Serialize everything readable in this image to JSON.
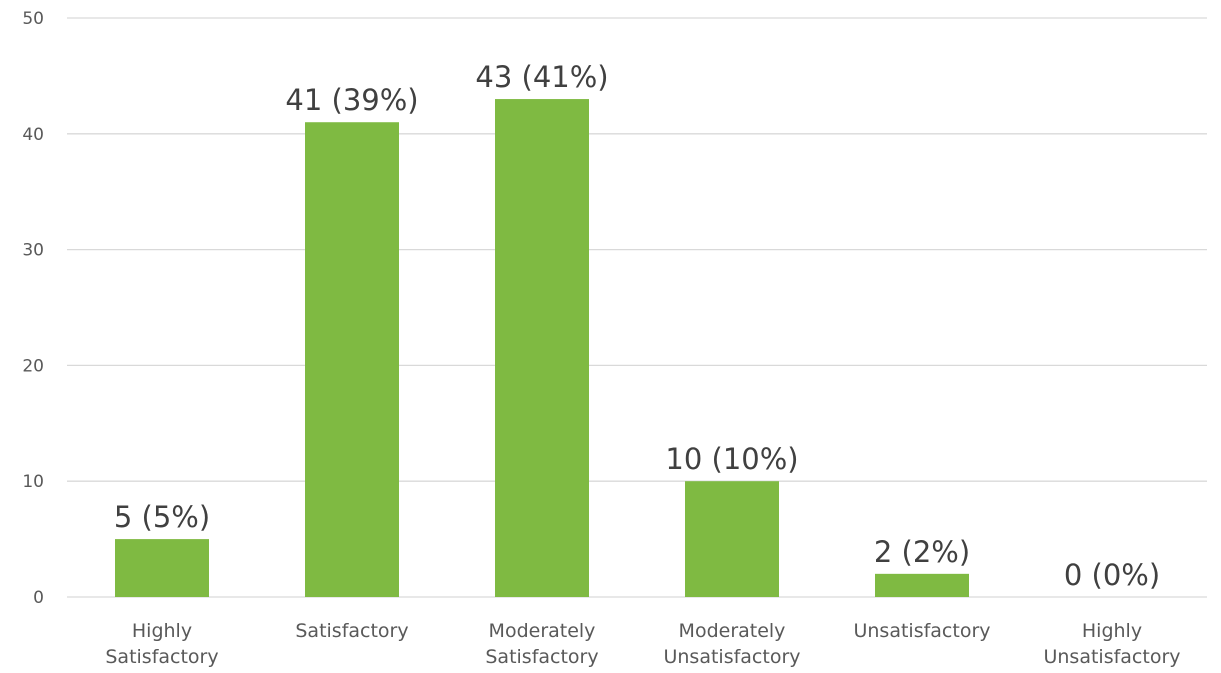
{
  "chart_data": {
    "type": "bar",
    "title": "",
    "xlabel": "",
    "ylabel": "",
    "categories": [
      [
        "Highly",
        "Satisfactory"
      ],
      [
        "Satisfactory"
      ],
      [
        "Moderately",
        "Satisfactory"
      ],
      [
        "Moderately",
        "Unsatisfactory"
      ],
      [
        "Unsatisfactory"
      ],
      [
        "Highly",
        "Unsatisfactory"
      ]
    ],
    "values": [
      5,
      41,
      43,
      10,
      2,
      0
    ],
    "data_labels": [
      "5 (5%)",
      "41 (39%)",
      "43 (41%)",
      "10 (10%)",
      "2 (2%)",
      "0 (0%)"
    ],
    "ylim": [
      0,
      50
    ],
    "yticks": [
      0,
      10,
      20,
      30,
      40,
      50
    ],
    "grid": true,
    "legend": "none",
    "bar_color": "#7fba42"
  }
}
